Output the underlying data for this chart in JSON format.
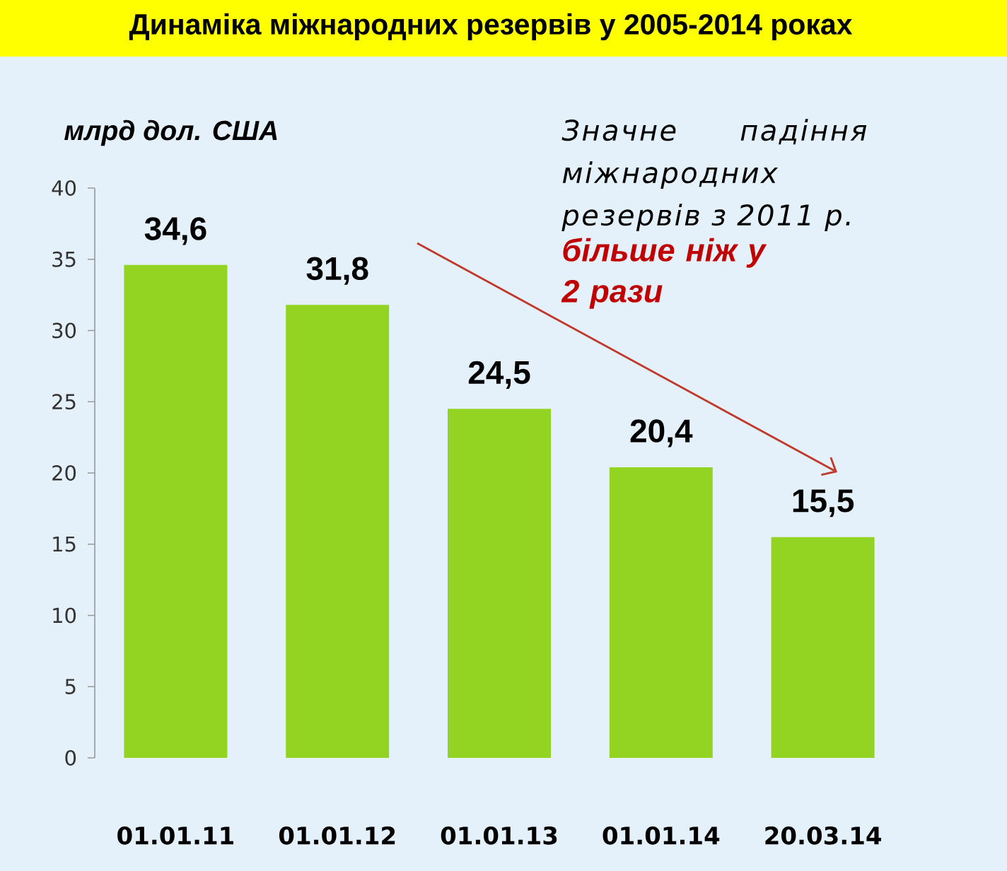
{
  "chart_data": {
    "type": "bar",
    "title": "Динаміка міжнародних резервів у 2005-2014 роках",
    "ylabel": "млрд дол. США",
    "categories": [
      "01.01.11",
      "01.01.12",
      "01.01.13",
      "01.01.14",
      "20.03.14"
    ],
    "values": [
      34.6,
      31.8,
      24.5,
      20.4,
      15.5
    ],
    "color": "#93d422",
    "value_labels": [
      "34,6",
      "31,8",
      "24,5",
      "20,4",
      "15,5"
    ],
    "ylim": [
      0,
      40
    ],
    "yticks": [
      0,
      5,
      10,
      15,
      20,
      25,
      30,
      35,
      40
    ],
    "annotations": [
      "Значне падіння міжнародних резервів з 2011 р.",
      "більше ніж у 2 рази"
    ]
  }
}
